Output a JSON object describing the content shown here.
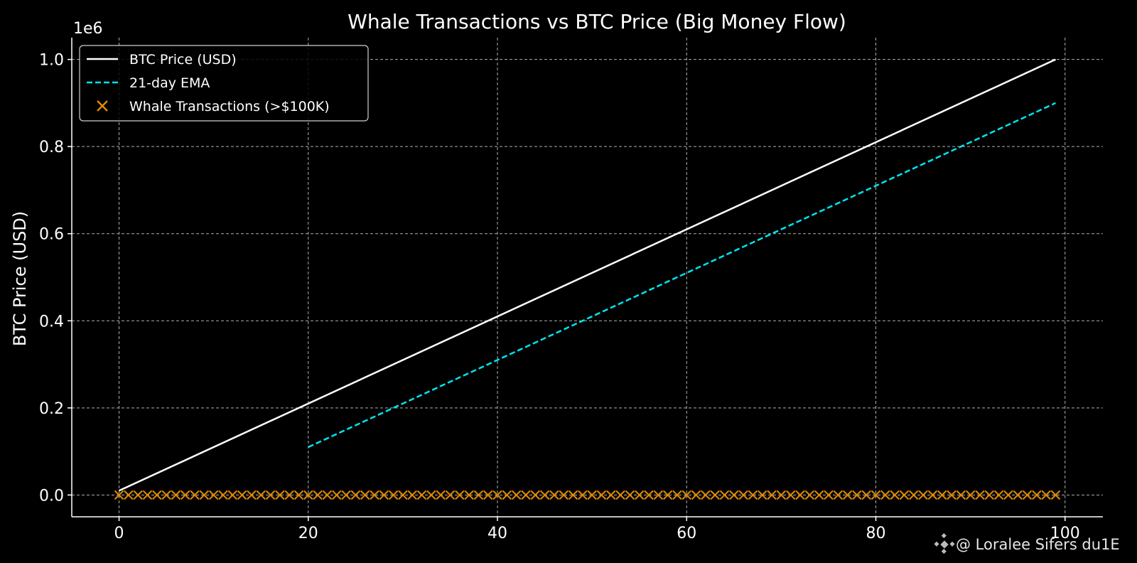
{
  "chart_data": {
    "type": "line",
    "title": "Whale Transactions vs BTC Price (Big Money Flow)",
    "xlabel": "",
    "ylabel": "BTC Price (USD)",
    "y_offset_label": "1e6",
    "xlim": [
      -5,
      104
    ],
    "ylim": [
      -0.05,
      1.05
    ],
    "y_scale": "1e6",
    "x_ticks": [
      0,
      20,
      40,
      60,
      80,
      100
    ],
    "y_ticks": [
      0.0,
      0.2,
      0.4,
      0.6,
      0.8,
      1.0
    ],
    "x_tick_labels": [
      "0",
      "20",
      "40",
      "60",
      "80",
      "100"
    ],
    "y_tick_labels": [
      "0.0",
      "0.2",
      "0.4",
      "0.6",
      "0.8",
      "1.0"
    ],
    "grid": true,
    "legend_position": "top-left",
    "series": [
      {
        "name": "BTC Price (USD)",
        "kind": "line",
        "style": "solid",
        "color": "#ffffff",
        "x": [
          0,
          99
        ],
        "y": [
          0.01,
          1.0
        ]
      },
      {
        "name": "21-day EMA",
        "kind": "line",
        "style": "dashed",
        "color": "#00e5ee",
        "x": [
          20,
          99
        ],
        "y": [
          0.11,
          0.9
        ]
      },
      {
        "name": "Whale Transactions (>$100K)",
        "kind": "scatter",
        "marker": "x",
        "color": "#e08a00",
        "x_range": [
          0,
          99
        ],
        "y": 0.0
      }
    ]
  },
  "watermark": {
    "icon": "binance-logo-icon",
    "text": "@ Loralee Sifers du1E"
  }
}
